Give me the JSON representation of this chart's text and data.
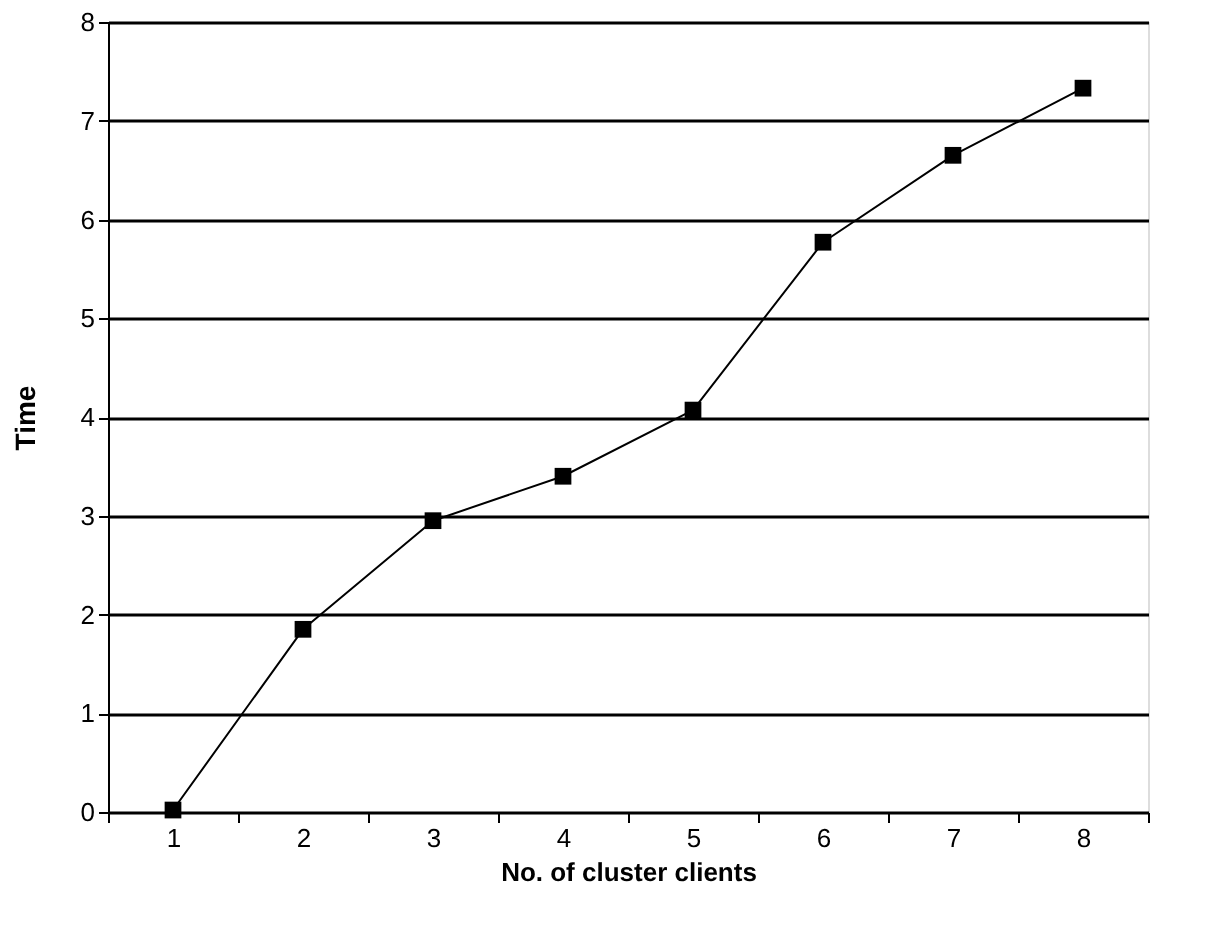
{
  "chart_data": {
    "type": "line",
    "xlabel": "No. of cluster clients",
    "ylabel": "Time",
    "categories": [
      "1",
      "2",
      "3",
      "4",
      "5",
      "6",
      "7",
      "8"
    ],
    "series": [
      {
        "color": "#000000",
        "values": [
          0.02,
          1.85,
          2.95,
          3.4,
          4.07,
          5.77,
          6.65,
          7.33
        ]
      }
    ],
    "ylim": [
      0,
      8
    ],
    "yticks": [
      0,
      1,
      2,
      3,
      4,
      5,
      6,
      7,
      8
    ],
    "grid": "y",
    "marker": "square",
    "line_style": "solid",
    "legend": false
  }
}
